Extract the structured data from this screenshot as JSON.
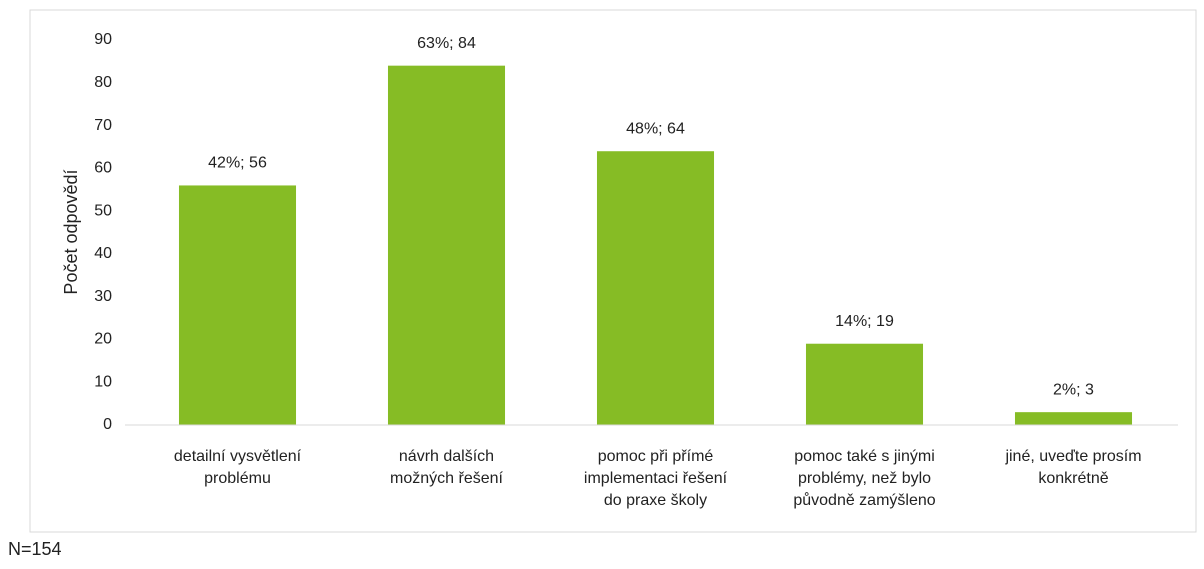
{
  "chart_data": {
    "type": "bar",
    "y_label": "Počet odpovědí",
    "categories": [
      [
        "detailní vysvětlení",
        "problému"
      ],
      [
        "návrh dalších",
        "možných řešení"
      ],
      [
        "pomoc při přímé",
        "implementaci řešení",
        "do praxe školy"
      ],
      [
        "pomoc také s jinými",
        "problémy, než bylo",
        "původně zamýšleno"
      ],
      [
        "jiné, uveďte prosím",
        "konkrétně"
      ]
    ],
    "values": [
      56,
      84,
      64,
      19,
      3
    ],
    "value_labels": [
      "42%; 56",
      "63%; 84",
      "48%; 64",
      "14%; 19",
      "2%; 3"
    ],
    "color": "#86bc25",
    "ylim": [
      0,
      90
    ],
    "yticks": [
      0,
      10,
      20,
      30,
      40,
      50,
      60,
      70,
      80,
      90
    ],
    "grid": false,
    "annotation": "N=154"
  }
}
